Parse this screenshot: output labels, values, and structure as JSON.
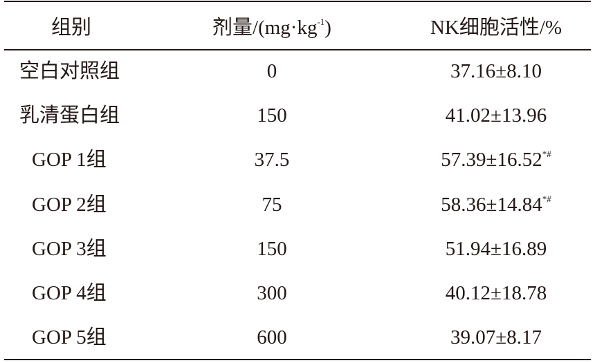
{
  "header": {
    "group": "组别",
    "dose": "剂量/(mg·kg",
    "dose_exp": "-1",
    "dose_close": ")",
    "activity": "NK细胞活性/%"
  },
  "rows": [
    {
      "group": "空白对照组",
      "dose": 0,
      "activity": "37.16±8.10"
    },
    {
      "group": "乳清蛋白组",
      "dose": 150,
      "activity": "41.02±13.96"
    },
    {
      "group": "GOP 1组",
      "dose": 37.5,
      "activity": "57.39±16.52",
      "mark": "*#"
    },
    {
      "group": "GOP 2组",
      "dose": 75,
      "activity": "58.36±14.84",
      "mark": "*#"
    },
    {
      "group": "GOP 3组",
      "dose": 150,
      "activity": "51.94±16.89"
    },
    {
      "group": "GOP 4组",
      "dose": 300,
      "activity": "40.12±18.78"
    },
    {
      "group": "GOP 5组",
      "dose": 600,
      "activity": "39.07±8.17"
    }
  ]
}
